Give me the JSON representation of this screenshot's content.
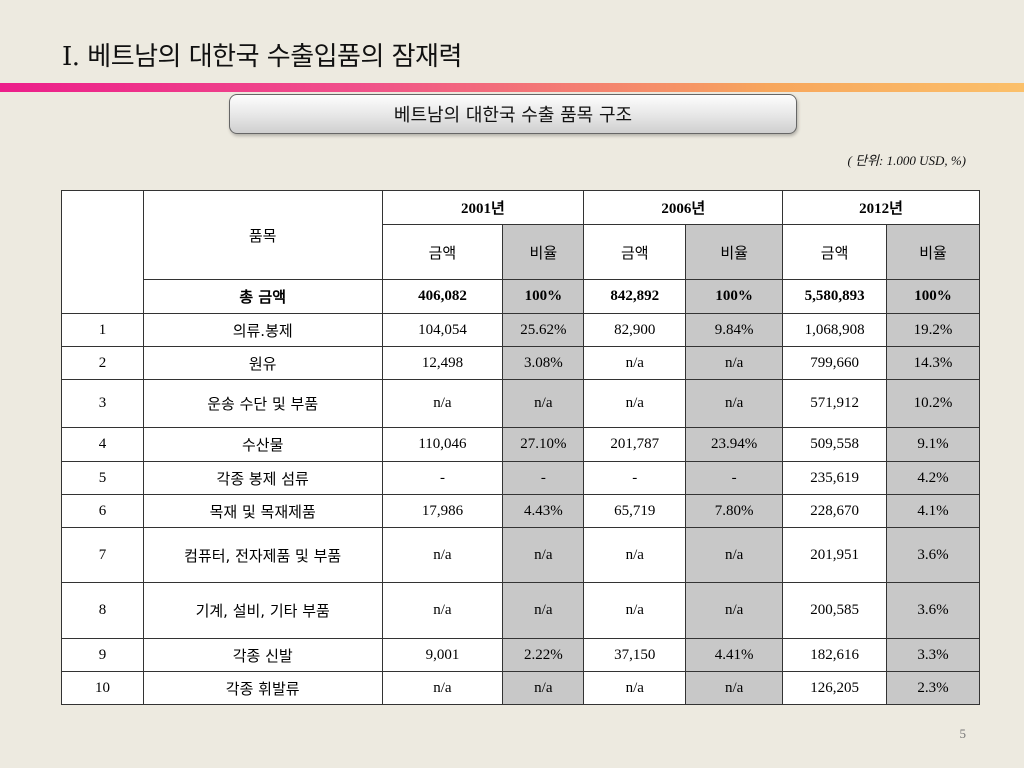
{
  "title": "I. 베트남의 대한국  수출입품의 잠재력",
  "banner": "베트남의 대한국 수출 품목 구조",
  "unit": "( 단위: 1.000 USD, %)",
  "table": {
    "item_header": "품목",
    "years": [
      "2001년",
      "2006년",
      "2012년"
    ],
    "sub_headers": [
      "금액",
      "비율"
    ],
    "total": {
      "label": "총 금액",
      "values": [
        "406,082",
        "100%",
        "842,892",
        "100%",
        "5,580,893",
        "100%"
      ]
    },
    "rows": [
      {
        "no": "1",
        "item": "의류.봉제",
        "values": [
          "104,054",
          "25.62%",
          "82,900",
          "9.84%",
          "1,068,908",
          "19.2%"
        ]
      },
      {
        "no": "2",
        "item": "원유",
        "values": [
          "12,498",
          "3.08%",
          "n/a",
          "n/a",
          "799,660",
          "14.3%"
        ]
      },
      {
        "no": "3",
        "item": "운송 수단 및 부품",
        "values": [
          "n/a",
          "n/a",
          "n/a",
          "n/a",
          "571,912",
          "10.2%"
        ]
      },
      {
        "no": "4",
        "item": "수산물",
        "values": [
          "110,046",
          "27.10%",
          "201,787",
          "23.94%",
          "509,558",
          "9.1%"
        ]
      },
      {
        "no": "5",
        "item": "각종 봉제 섬류",
        "values": [
          "-",
          "-",
          "-",
          "-",
          "235,619",
          "4.2%"
        ]
      },
      {
        "no": "6",
        "item": "목재 및 목재제품",
        "values": [
          "17,986",
          "4.43%",
          "65,719",
          "7.80%",
          "228,670",
          "4.1%"
        ]
      },
      {
        "no": "7",
        "item": "컴퓨터, 전자제품 및 부품",
        "values": [
          "n/a",
          "n/a",
          "n/a",
          "n/a",
          "201,951",
          "3.6%"
        ]
      },
      {
        "no": "8",
        "item": "기계, 설비, 기타 부품",
        "values": [
          "n/a",
          "n/a",
          "n/a",
          "n/a",
          "200,585",
          "3.6%"
        ]
      },
      {
        "no": "9",
        "item": "각종 신발",
        "values": [
          "9,001",
          "2.22%",
          "37,150",
          "4.41%",
          "182,616",
          "3.3%"
        ]
      },
      {
        "no": "10",
        "item": "각종 휘발류",
        "values": [
          "n/a",
          "n/a",
          "n/a",
          "n/a",
          "126,205",
          "2.3%"
        ]
      }
    ]
  },
  "page_number": "5"
}
